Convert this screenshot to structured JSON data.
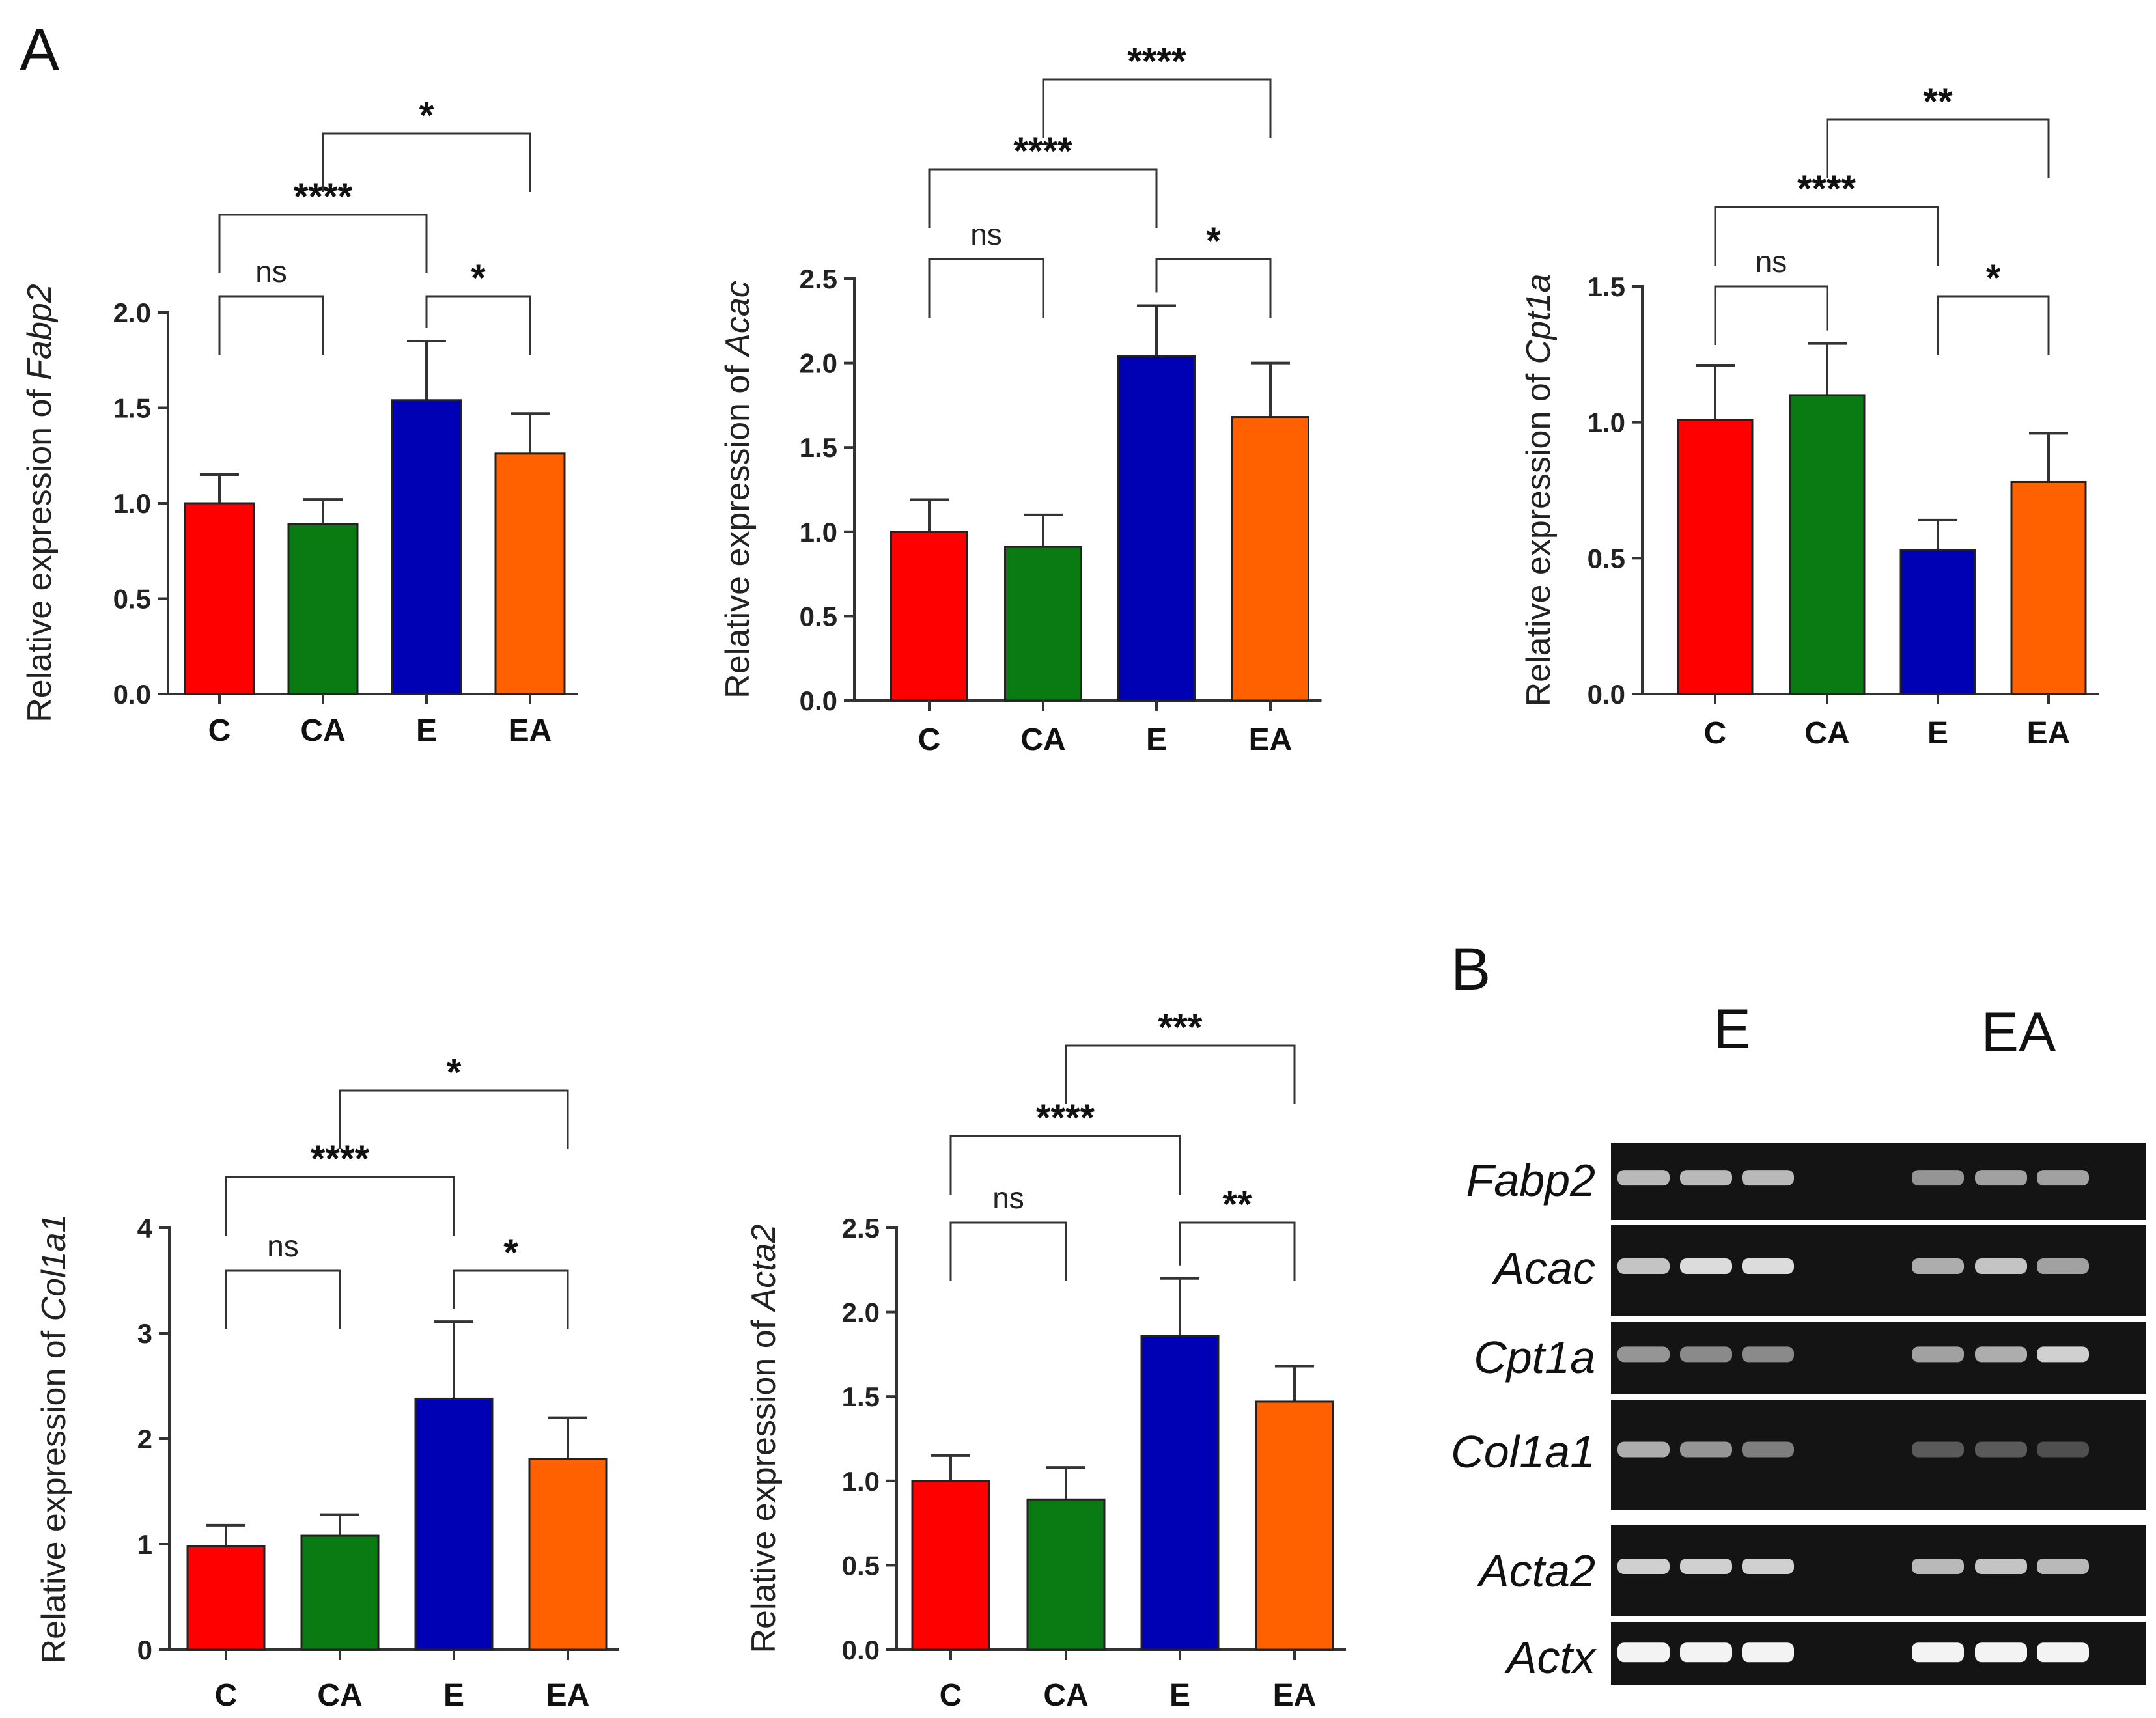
{
  "panels": {
    "a": "A",
    "b": "B"
  },
  "chart_data": [
    {
      "type": "bar",
      "ylabel_prefix": "Relative expression of ",
      "ylabel_gene": "Fabp2",
      "categories": [
        "C",
        "CA",
        "E",
        "EA"
      ],
      "values": [
        1.0,
        0.89,
        1.54,
        1.26
      ],
      "errors": [
        0.15,
        0.13,
        0.31,
        0.21
      ],
      "colors": [
        "#ff0000",
        "#0a7a12",
        "#0000b5",
        "#ff6000"
      ],
      "ylim": [
        0,
        2.0
      ],
      "yticks": [
        0,
        0.5,
        1.0,
        1.5,
        2.0
      ],
      "ytick_labels": [
        "0.0",
        "0.5",
        "1.0",
        "1.5",
        "2.0"
      ],
      "comparisons": [
        {
          "from": "C",
          "to": "CA",
          "label": "ns"
        },
        {
          "from": "E",
          "to": "EA",
          "label": "*"
        },
        {
          "from": "C",
          "to": "E",
          "label": "****"
        },
        {
          "from": "CA",
          "to": "EA",
          "label": "*"
        }
      ]
    },
    {
      "type": "bar",
      "ylabel_prefix": "Relative expression of ",
      "ylabel_gene": "Acac",
      "categories": [
        "C",
        "CA",
        "E",
        "EA"
      ],
      "values": [
        1.0,
        0.91,
        2.04,
        1.68
      ],
      "errors": [
        0.19,
        0.19,
        0.3,
        0.32
      ],
      "colors": [
        "#ff0000",
        "#0a7a12",
        "#0000b5",
        "#ff6000"
      ],
      "ylim": [
        0,
        2.5
      ],
      "yticks": [
        0,
        0.5,
        1.0,
        1.5,
        2.0,
        2.5
      ],
      "ytick_labels": [
        "0.0",
        "0.5",
        "1.0",
        "1.5",
        "2.0",
        "2.5"
      ],
      "comparisons": [
        {
          "from": "C",
          "to": "CA",
          "label": "ns"
        },
        {
          "from": "E",
          "to": "EA",
          "label": "*"
        },
        {
          "from": "C",
          "to": "E",
          "label": "****"
        },
        {
          "from": "CA",
          "to": "EA",
          "label": "****"
        }
      ]
    },
    {
      "type": "bar",
      "ylabel_prefix": "Relative expression of ",
      "ylabel_gene": "Cpt1a",
      "categories": [
        "C",
        "CA",
        "E",
        "EA"
      ],
      "values": [
        1.01,
        1.1,
        0.53,
        0.78
      ],
      "errors": [
        0.2,
        0.19,
        0.11,
        0.18
      ],
      "colors": [
        "#ff0000",
        "#0a7a12",
        "#0000b5",
        "#ff6000"
      ],
      "ylim": [
        0,
        1.5
      ],
      "yticks": [
        0,
        0.5,
        1.0,
        1.5
      ],
      "ytick_labels": [
        "0.0",
        "0.5",
        "1.0",
        "1.5"
      ],
      "comparisons": [
        {
          "from": "C",
          "to": "CA",
          "label": "ns"
        },
        {
          "from": "E",
          "to": "EA",
          "label": "*"
        },
        {
          "from": "C",
          "to": "E",
          "label": "****"
        },
        {
          "from": "CA",
          "to": "EA",
          "label": "**"
        }
      ]
    },
    {
      "type": "bar",
      "ylabel_prefix": "Relative expression of ",
      "ylabel_gene": "Col1a1",
      "categories": [
        "C",
        "CA",
        "E",
        "EA"
      ],
      "values": [
        0.98,
        1.08,
        2.38,
        1.81
      ],
      "errors": [
        0.2,
        0.2,
        0.73,
        0.39
      ],
      "colors": [
        "#ff0000",
        "#0a7a12",
        "#0000b5",
        "#ff6000"
      ],
      "ylim": [
        0,
        4
      ],
      "yticks": [
        0,
        1,
        2,
        3,
        4
      ],
      "ytick_labels": [
        "0",
        "1",
        "2",
        "3",
        "4"
      ],
      "comparisons": [
        {
          "from": "C",
          "to": "CA",
          "label": "ns"
        },
        {
          "from": "E",
          "to": "EA",
          "label": "*"
        },
        {
          "from": "C",
          "to": "E",
          "label": "****"
        },
        {
          "from": "CA",
          "to": "EA",
          "label": "*"
        }
      ]
    },
    {
      "type": "bar",
      "ylabel_prefix": "Relative expression of ",
      "ylabel_gene": "Acta2",
      "categories": [
        "C",
        "CA",
        "E",
        "EA"
      ],
      "values": [
        1.0,
        0.89,
        1.86,
        1.47
      ],
      "errors": [
        0.15,
        0.19,
        0.34,
        0.21
      ],
      "colors": [
        "#ff0000",
        "#0a7a12",
        "#0000b5",
        "#ff6000"
      ],
      "ylim": [
        0,
        2.5
      ],
      "yticks": [
        0,
        0.5,
        1.0,
        1.5,
        2.0,
        2.5
      ],
      "ytick_labels": [
        "0.0",
        "0.5",
        "1.0",
        "1.5",
        "2.0",
        "2.5"
      ],
      "comparisons": [
        {
          "from": "C",
          "to": "CA",
          "label": "ns"
        },
        {
          "from": "E",
          "to": "EA",
          "label": "**"
        },
        {
          "from": "C",
          "to": "E",
          "label": "****"
        },
        {
          "from": "CA",
          "to": "EA",
          "label": "***"
        }
      ]
    }
  ],
  "gel": {
    "lanes": [
      "E",
      "EA"
    ],
    "genes": [
      "Fabp2",
      "Acac",
      "Cpt1a",
      "Col1a1",
      "Acta2",
      "Actx"
    ]
  }
}
